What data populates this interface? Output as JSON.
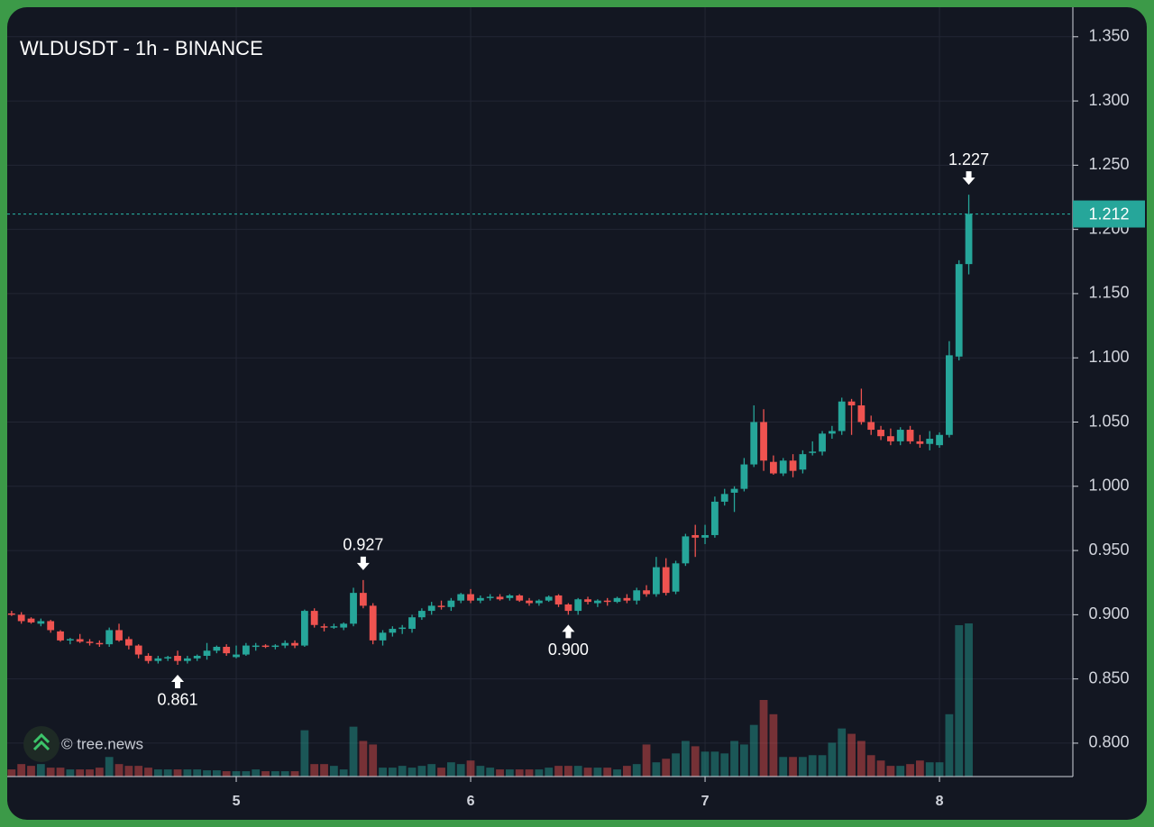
{
  "chart_data": {
    "type": "candlestick",
    "title": "WLDUSDT - 1h - BINANCE",
    "watermark": "© tree.news",
    "x": [
      4.0417,
      4.0833,
      4.125,
      4.1667,
      4.2083,
      4.25,
      4.2917,
      4.3333,
      4.375,
      4.4167,
      4.4583,
      4.5,
      4.5417,
      4.5833,
      4.625,
      4.6667,
      4.7083,
      4.75,
      4.7917,
      4.8333,
      4.875,
      4.9167,
      4.9583,
      5,
      5.0417,
      5.0833,
      5.125,
      5.1667,
      5.2083,
      5.25,
      5.2917,
      5.3333,
      5.375,
      5.4167,
      5.4583,
      5.5,
      5.5417,
      5.5833,
      5.625,
      5.6667,
      5.7083,
      5.75,
      5.7917,
      5.8333,
      5.875,
      5.9167,
      5.9583,
      6,
      6.0417,
      6.0833,
      6.125,
      6.1667,
      6.2083,
      6.25,
      6.2917,
      6.3333,
      6.375,
      6.4167,
      6.4583,
      6.5,
      6.5417,
      6.5833,
      6.625,
      6.6667,
      6.7083,
      6.75,
      6.7917,
      6.8333,
      6.875,
      6.9167,
      6.9583,
      7,
      7.0417,
      7.0833,
      7.125,
      7.1667,
      7.2083,
      7.25,
      7.2917,
      7.3333,
      7.375,
      7.4167,
      7.4583,
      7.5,
      7.5417,
      7.5833,
      7.625,
      7.6667,
      7.7083,
      7.75,
      7.7917,
      7.8333,
      7.875,
      7.9167,
      7.9583,
      8,
      8.0417,
      8.0833,
      8.125
    ],
    "open": [
      0.901,
      0.9,
      0.897,
      0.893,
      0.895,
      0.887,
      0.88,
      0.881,
      0.879,
      0.878,
      0.877,
      0.888,
      0.881,
      0.876,
      0.868,
      0.864,
      0.866,
      0.868,
      0.864,
      0.866,
      0.868,
      0.872,
      0.875,
      0.867,
      0.869,
      0.875,
      0.876,
      0.875,
      0.876,
      0.878,
      0.876,
      0.903,
      0.891,
      0.891,
      0.89,
      0.893,
      0.917,
      0.907,
      0.88,
      0.886,
      0.889,
      0.889,
      0.898,
      0.903,
      0.907,
      0.906,
      0.911,
      0.916,
      0.911,
      0.913,
      0.914,
      0.913,
      0.915,
      0.911,
      0.909,
      0.911,
      0.915,
      0.908,
      0.903,
      0.912,
      0.909,
      0.911,
      0.91,
      0.913,
      0.911,
      0.919,
      0.916,
      0.937,
      0.918,
      0.94,
      0.962,
      0.96,
      0.962,
      0.988,
      0.995,
      0.998,
      1.017,
      1.05,
      1.019,
      1.01,
      1.02,
      1.013,
      1.026,
      1.027,
      1.041,
      1.043,
      1.066,
      1.063,
      1.05,
      1.044,
      1.039,
      1.035,
      1.044,
      1.035,
      1.033,
      1.032,
      1.04,
      1.101,
      1.173
    ],
    "high": [
      0.903,
      0.902,
      0.898,
      0.897,
      0.896,
      0.888,
      0.882,
      0.885,
      0.881,
      0.88,
      0.89,
      0.893,
      0.883,
      0.877,
      0.87,
      0.868,
      0.868,
      0.872,
      0.868,
      0.869,
      0.878,
      0.876,
      0.877,
      0.876,
      0.878,
      0.878,
      0.877,
      0.877,
      0.88,
      0.88,
      0.904,
      0.905,
      0.893,
      0.893,
      0.894,
      0.921,
      0.927,
      0.909,
      0.888,
      0.891,
      0.892,
      0.9,
      0.905,
      0.91,
      0.911,
      0.913,
      0.917,
      0.92,
      0.915,
      0.916,
      0.916,
      0.916,
      0.916,
      0.913,
      0.912,
      0.915,
      0.916,
      0.909,
      0.913,
      0.914,
      0.912,
      0.913,
      0.914,
      0.916,
      0.921,
      0.923,
      0.945,
      0.944,
      0.942,
      0.963,
      0.97,
      0.97,
      0.992,
      0.998,
      1.0,
      1.022,
      1.063,
      1.06,
      1.024,
      1.022,
      1.025,
      1.028,
      1.035,
      1.043,
      1.047,
      1.069,
      1.068,
      1.076,
      1.055,
      1.047,
      1.045,
      1.046,
      1.047,
      1.04,
      1.043,
      1.042,
      1.113,
      1.176,
      1.227
    ],
    "low": [
      0.899,
      0.893,
      0.893,
      0.891,
      0.886,
      0.879,
      0.877,
      0.878,
      0.876,
      0.875,
      0.875,
      0.879,
      0.873,
      0.866,
      0.862,
      0.862,
      0.864,
      0.861,
      0.862,
      0.864,
      0.865,
      0.87,
      0.868,
      0.866,
      0.868,
      0.872,
      0.874,
      0.873,
      0.874,
      0.874,
      0.875,
      0.89,
      0.887,
      0.889,
      0.888,
      0.891,
      0.905,
      0.877,
      0.876,
      0.883,
      0.885,
      0.886,
      0.896,
      0.9,
      0.904,
      0.903,
      0.909,
      0.909,
      0.909,
      0.911,
      0.911,
      0.911,
      0.91,
      0.907,
      0.907,
      0.91,
      0.906,
      0.9,
      0.9,
      0.908,
      0.906,
      0.907,
      0.909,
      0.909,
      0.908,
      0.914,
      0.914,
      0.915,
      0.916,
      0.938,
      0.945,
      0.955,
      0.96,
      0.985,
      0.98,
      0.996,
      1.015,
      1.012,
      1.009,
      1.008,
      1.007,
      1.01,
      1.024,
      1.024,
      1.037,
      1.04,
      1.04,
      1.048,
      1.04,
      1.036,
      1.032,
      1.032,
      1.033,
      1.03,
      1.028,
      1.03,
      1.038,
      1.098,
      1.165
    ],
    "close": [
      0.9,
      0.895,
      0.894,
      0.895,
      0.888,
      0.88,
      0.881,
      0.879,
      0.878,
      0.877,
      0.888,
      0.88,
      0.876,
      0.869,
      0.864,
      0.866,
      0.867,
      0.864,
      0.866,
      0.868,
      0.872,
      0.875,
      0.87,
      0.869,
      0.876,
      0.876,
      0.875,
      0.876,
      0.878,
      0.876,
      0.903,
      0.892,
      0.89,
      0.891,
      0.893,
      0.917,
      0.907,
      0.88,
      0.886,
      0.889,
      0.89,
      0.898,
      0.903,
      0.907,
      0.906,
      0.911,
      0.916,
      0.911,
      0.913,
      0.914,
      0.912,
      0.915,
      0.911,
      0.909,
      0.911,
      0.914,
      0.908,
      0.903,
      0.912,
      0.91,
      0.911,
      0.91,
      0.913,
      0.911,
      0.919,
      0.916,
      0.937,
      0.917,
      0.94,
      0.961,
      0.96,
      0.962,
      0.988,
      0.994,
      0.998,
      1.017,
      1.05,
      1.02,
      1.01,
      1.02,
      1.012,
      1.025,
      1.027,
      1.041,
      1.043,
      1.066,
      1.063,
      1.05,
      1.044,
      1.039,
      1.035,
      1.044,
      1.035,
      1.033,
      1.037,
      1.04,
      1.102,
      1.173,
      1.212
    ],
    "volume": [
      8,
      14,
      12,
      14,
      10,
      10,
      8,
      8,
      8,
      10,
      22,
      14,
      12,
      12,
      10,
      8,
      8,
      8,
      8,
      8,
      7,
      7,
      6,
      6,
      6,
      8,
      6,
      6,
      6,
      6,
      52,
      14,
      14,
      12,
      8,
      56,
      40,
      36,
      10,
      10,
      12,
      10,
      12,
      14,
      10,
      16,
      14,
      18,
      12,
      10,
      8,
      8,
      8,
      8,
      8,
      10,
      12,
      12,
      12,
      10,
      10,
      10,
      8,
      12,
      14,
      36,
      16,
      20,
      26,
      40,
      34,
      28,
      28,
      26,
      40,
      36,
      58,
      86,
      70,
      22,
      22,
      22,
      24,
      24,
      38,
      54,
      48,
      40,
      24,
      18,
      12,
      12,
      14,
      18,
      16,
      16,
      70,
      170,
      172
    ],
    "up_color": "#26a69a",
    "down_color": "#ef5350",
    "xlim": [
      4.023,
      8.569
    ],
    "xticks": [
      5,
      6,
      7,
      8
    ],
    "ylim": [
      0.774,
      1.373
    ],
    "yticks": [
      {
        "value": 0.8,
        "label": "0.800"
      },
      {
        "value": 0.85,
        "label": "0.850"
      },
      {
        "value": 0.9,
        "label": "0.900"
      },
      {
        "value": 0.95,
        "label": "0.950"
      },
      {
        "value": 1.0,
        "label": "1.000"
      },
      {
        "value": 1.05,
        "label": "1.050"
      },
      {
        "value": 1.1,
        "label": "1.100"
      },
      {
        "value": 1.15,
        "label": "1.150"
      },
      {
        "value": 1.2,
        "label": "1.200"
      },
      {
        "value": 1.25,
        "label": "1.250"
      },
      {
        "value": 1.3,
        "label": "1.300"
      },
      {
        "value": 1.35,
        "label": "1.350"
      }
    ],
    "grid": true,
    "last_price_line": true,
    "annotations": [
      {
        "x": 4.75,
        "value": 0.861,
        "marker": "low"
      },
      {
        "x": 5.5417,
        "value": 0.927,
        "marker": "high"
      },
      {
        "x": 6.4167,
        "value": {
          "value": 0.9,
          "label": "0.900"
        },
        "marker": "low"
      },
      {
        "x": 8.125,
        "value": 1.227,
        "marker": "high"
      }
    ]
  }
}
